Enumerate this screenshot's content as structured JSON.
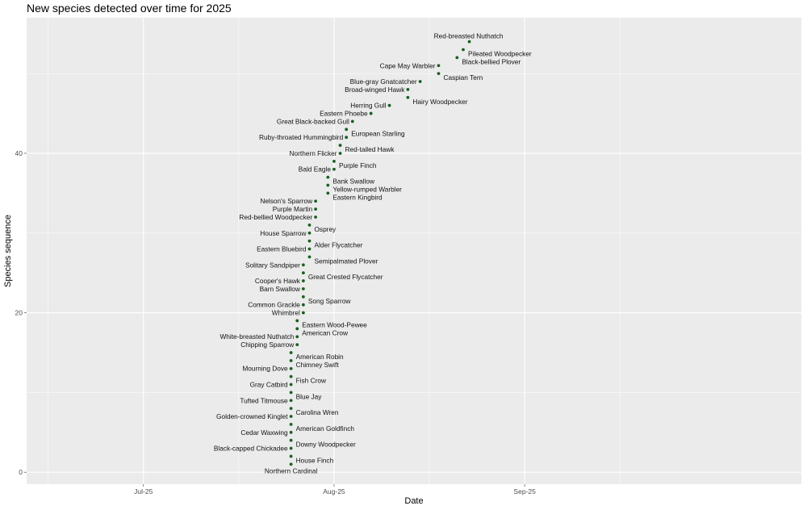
{
  "chart_data": {
    "type": "scatter",
    "title": "New species detected over time for 2025",
    "xlabel": "Date",
    "ylabel": "Species sequence",
    "x_ticks": [
      {
        "date": "2025-07-01",
        "label": "Jul-25"
      },
      {
        "date": "2025-08-01",
        "label": "Aug-25"
      },
      {
        "date": "2025-09-01",
        "label": "Sep-25"
      }
    ],
    "y_ticks": [
      0,
      20,
      40
    ],
    "xlim": [
      "2025-06-12",
      "2025-10-16"
    ],
    "ylim": [
      -1.5,
      57
    ],
    "grid": true,
    "point_color": "#1b5e20",
    "points": [
      {
        "x": "2025-07-25",
        "y": 1,
        "label": "Northern Cardinal",
        "side": "below"
      },
      {
        "x": "2025-07-25",
        "y": 2,
        "label": "House Finch",
        "side": "right"
      },
      {
        "x": "2025-07-25",
        "y": 3,
        "label": "Black-capped Chickadee",
        "side": "left"
      },
      {
        "x": "2025-07-25",
        "y": 4,
        "label": "Downy Woodpecker",
        "side": "right"
      },
      {
        "x": "2025-07-25",
        "y": 5,
        "label": "Cedar Waxwing",
        "side": "left"
      },
      {
        "x": "2025-07-25",
        "y": 6,
        "label": "American Goldfinch",
        "side": "right"
      },
      {
        "x": "2025-07-25",
        "y": 7,
        "label": "Golden-crowned Kinglet",
        "side": "left"
      },
      {
        "x": "2025-07-25",
        "y": 8,
        "label": "Carolina Wren",
        "side": "right"
      },
      {
        "x": "2025-07-25",
        "y": 9,
        "label": "Tufted Titmouse",
        "side": "left"
      },
      {
        "x": "2025-07-25",
        "y": 10,
        "label": "Blue Jay",
        "side": "right"
      },
      {
        "x": "2025-07-25",
        "y": 11,
        "label": "Gray Catbird",
        "side": "left"
      },
      {
        "x": "2025-07-25",
        "y": 12,
        "label": "Fish Crow",
        "side": "right"
      },
      {
        "x": "2025-07-25",
        "y": 13,
        "label": "Mourning Dove",
        "side": "left"
      },
      {
        "x": "2025-07-25",
        "y": 14,
        "label": "Chimney Swift",
        "side": "right"
      },
      {
        "x": "2025-07-25",
        "y": 15,
        "label": "American Robin",
        "side": "right"
      },
      {
        "x": "2025-07-26",
        "y": 16,
        "label": "Chipping Sparrow",
        "side": "left"
      },
      {
        "x": "2025-07-26",
        "y": 17,
        "label": "White-breasted Nuthatch",
        "side": "left"
      },
      {
        "x": "2025-07-26",
        "y": 18,
        "label": "American Crow",
        "side": "right"
      },
      {
        "x": "2025-07-26",
        "y": 19,
        "label": "Eastern Wood-Pewee",
        "side": "right"
      },
      {
        "x": "2025-07-27",
        "y": 20,
        "label": "Whimbrel",
        "side": "left"
      },
      {
        "x": "2025-07-27",
        "y": 21,
        "label": "Common Grackle",
        "side": "left"
      },
      {
        "x": "2025-07-27",
        "y": 22,
        "label": "Song Sparrow",
        "side": "right"
      },
      {
        "x": "2025-07-27",
        "y": 23,
        "label": "Barn Swallow",
        "side": "left"
      },
      {
        "x": "2025-07-27",
        "y": 24,
        "label": "Cooper's Hawk",
        "side": "left"
      },
      {
        "x": "2025-07-27",
        "y": 25,
        "label": "Great Crested Flycatcher",
        "side": "right"
      },
      {
        "x": "2025-07-27",
        "y": 26,
        "label": "Solitary Sandpiper",
        "side": "left"
      },
      {
        "x": "2025-07-28",
        "y": 27,
        "label": "Semipalmated Plover",
        "side": "right"
      },
      {
        "x": "2025-07-28",
        "y": 28,
        "label": "Eastern Bluebird",
        "side": "left"
      },
      {
        "x": "2025-07-28",
        "y": 29,
        "label": "Alder Flycatcher",
        "side": "right"
      },
      {
        "x": "2025-07-28",
        "y": 30,
        "label": "House Sparrow",
        "side": "left"
      },
      {
        "x": "2025-07-28",
        "y": 31,
        "label": "Osprey",
        "side": "right"
      },
      {
        "x": "2025-07-29",
        "y": 32,
        "label": "Red-bellied Woodpecker",
        "side": "left"
      },
      {
        "x": "2025-07-29",
        "y": 33,
        "label": "Purple Martin",
        "side": "left"
      },
      {
        "x": "2025-07-29",
        "y": 34,
        "label": "Nelson's Sparrow",
        "side": "left"
      },
      {
        "x": "2025-07-31",
        "y": 35,
        "label": "Eastern Kingbird",
        "side": "right"
      },
      {
        "x": "2025-07-31",
        "y": 36,
        "label": "Yellow-rumped Warbler",
        "side": "right"
      },
      {
        "x": "2025-07-31",
        "y": 37,
        "label": "Bank Swallow",
        "side": "right"
      },
      {
        "x": "2025-08-01",
        "y": 38,
        "label": "Bald Eagle",
        "side": "left"
      },
      {
        "x": "2025-08-01",
        "y": 39,
        "label": "Purple Finch",
        "side": "right"
      },
      {
        "x": "2025-08-02",
        "y": 40,
        "label": "Northern Flicker",
        "side": "left"
      },
      {
        "x": "2025-08-02",
        "y": 41,
        "label": "Red-tailed Hawk",
        "side": "right"
      },
      {
        "x": "2025-08-03",
        "y": 42,
        "label": "Ruby-throated Hummingbird",
        "side": "left"
      },
      {
        "x": "2025-08-03",
        "y": 43,
        "label": "European Starling",
        "side": "right"
      },
      {
        "x": "2025-08-04",
        "y": 44,
        "label": "Great Black-backed Gull",
        "side": "left"
      },
      {
        "x": "2025-08-07",
        "y": 45,
        "label": "Eastern Phoebe",
        "side": "left"
      },
      {
        "x": "2025-08-10",
        "y": 46,
        "label": "Herring Gull",
        "side": "left"
      },
      {
        "x": "2025-08-13",
        "y": 47,
        "label": "Hairy Woodpecker",
        "side": "right"
      },
      {
        "x": "2025-08-13",
        "y": 48,
        "label": "Broad-winged Hawk",
        "side": "left"
      },
      {
        "x": "2025-08-15",
        "y": 49,
        "label": "Blue-gray Gnatcatcher",
        "side": "left"
      },
      {
        "x": "2025-08-18",
        "y": 50,
        "label": "Caspian Tern",
        "side": "right"
      },
      {
        "x": "2025-08-18",
        "y": 51,
        "label": "Cape May Warbler",
        "side": "left"
      },
      {
        "x": "2025-08-21",
        "y": 52,
        "label": "Black-bellied Plover",
        "side": "right"
      },
      {
        "x": "2025-08-22",
        "y": 53,
        "label": "Pileated Woodpecker",
        "side": "right"
      },
      {
        "x": "2025-08-23",
        "y": 54,
        "label": "Red-breasted Nuthatch",
        "side": "above"
      }
    ]
  }
}
